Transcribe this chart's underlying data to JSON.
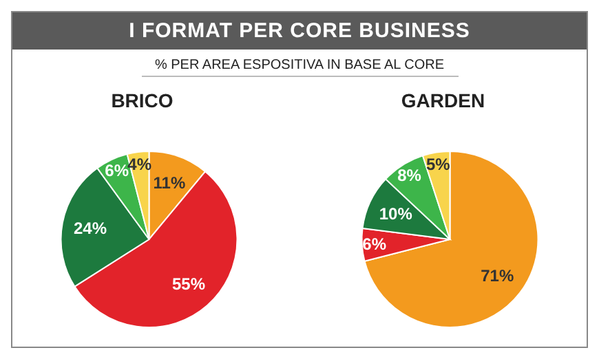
{
  "chart_data": {
    "type": "pie",
    "title": "I FORMAT PER CORE BUSINESS",
    "subtitle": "% PER AREA ESPOSITIVA IN BASE AL CORE",
    "categories": [
      null,
      null,
      null,
      null,
      null
    ],
    "colors": [
      "#f39a1e",
      "#e2232a",
      "#1d7a3e",
      "#3db54a",
      "#f8d44c"
    ],
    "series": [
      {
        "name": "BRICO",
        "values": [
          11,
          55,
          24,
          6,
          4
        ],
        "value_labels": [
          "11%",
          "55%",
          "24%",
          "6%",
          "4%"
        ]
      },
      {
        "name": "GARDEN",
        "values": [
          71,
          6,
          10,
          8,
          5
        ],
        "value_labels": [
          "71%",
          "6%",
          "10%",
          "8%",
          "5%"
        ]
      }
    ]
  }
}
